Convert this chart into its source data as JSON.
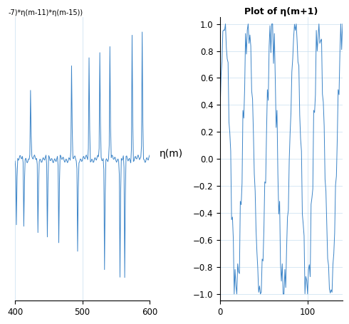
{
  "title_left": "-7)*η(m-11)*η(m-15))",
  "title_right": "Plot of η(m+1)",
  "ylabel_right": "η(m)",
  "xlim_left": [
    400,
    600
  ],
  "xlim_right": [
    0,
    140
  ],
  "ylim_left": [
    -1.05,
    1.05
  ],
  "ylim_right": [
    -1.05,
    1.05
  ],
  "yticks_left": [],
  "yticks_right": [
    -1,
    -0.8,
    -0.6,
    -0.4,
    -0.2,
    0,
    0.2,
    0.4,
    0.6,
    0.8,
    1
  ],
  "xticks_left": [
    400,
    500,
    600
  ],
  "xticks_right": [
    0,
    100
  ],
  "line_color": "#3d85c8",
  "background_color": "#ffffff",
  "grid_color": "#c8dff0"
}
